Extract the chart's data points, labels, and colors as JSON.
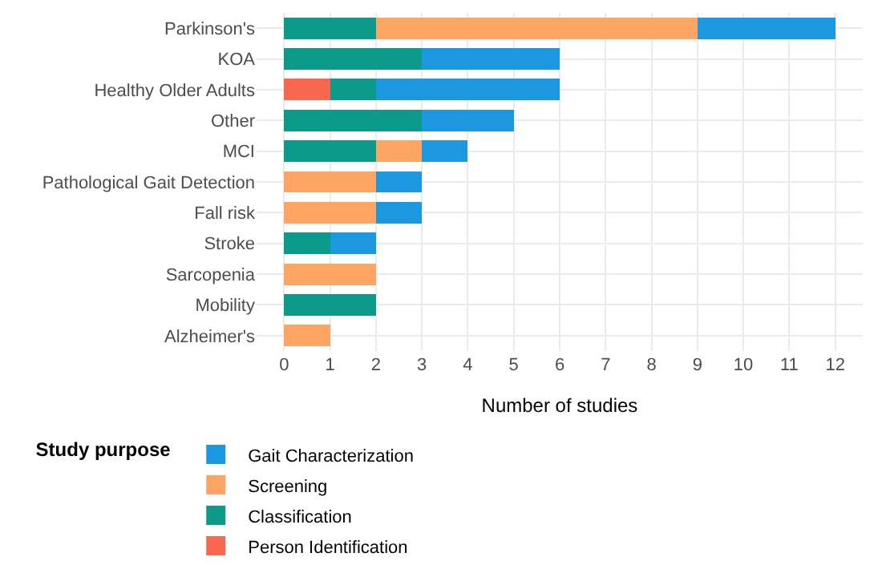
{
  "chart_data": {
    "type": "bar",
    "orientation": "horizontal",
    "stacked": true,
    "xlabel": "Number of studies",
    "legend_title": "Study purpose",
    "legend": "bottom",
    "grid": true,
    "categories": [
      "Parkinson's",
      "KOA",
      "Healthy Older Adults",
      "Other",
      "MCI",
      "Pathological Gait Detection",
      "Fall risk",
      "Stroke",
      "Sarcopenia",
      "Mobility",
      "Alzheimer's"
    ],
    "series": [
      {
        "name": "Person Identification",
        "color": "#f8674f",
        "values": [
          null,
          null,
          1,
          null,
          null,
          null,
          null,
          null,
          null,
          null,
          null
        ]
      },
      {
        "name": "Classification",
        "color": "#0c9a8a",
        "values": [
          2,
          3,
          1,
          3,
          2,
          null,
          null,
          1,
          null,
          2,
          null
        ]
      },
      {
        "name": "Screening",
        "color": "#fda663",
        "values": [
          7,
          null,
          null,
          null,
          1,
          2,
          2,
          null,
          2,
          null,
          1
        ]
      },
      {
        "name": "Gait Characterization",
        "color": "#1b98e0",
        "values": [
          3,
          3,
          4,
          2,
          1,
          1,
          1,
          1,
          null,
          null,
          null
        ]
      }
    ],
    "xlim": [
      -0.6,
      12.6
    ],
    "xticks": [
      0,
      1,
      2,
      3,
      4,
      5,
      6,
      7,
      8,
      9,
      10,
      11,
      12
    ]
  }
}
